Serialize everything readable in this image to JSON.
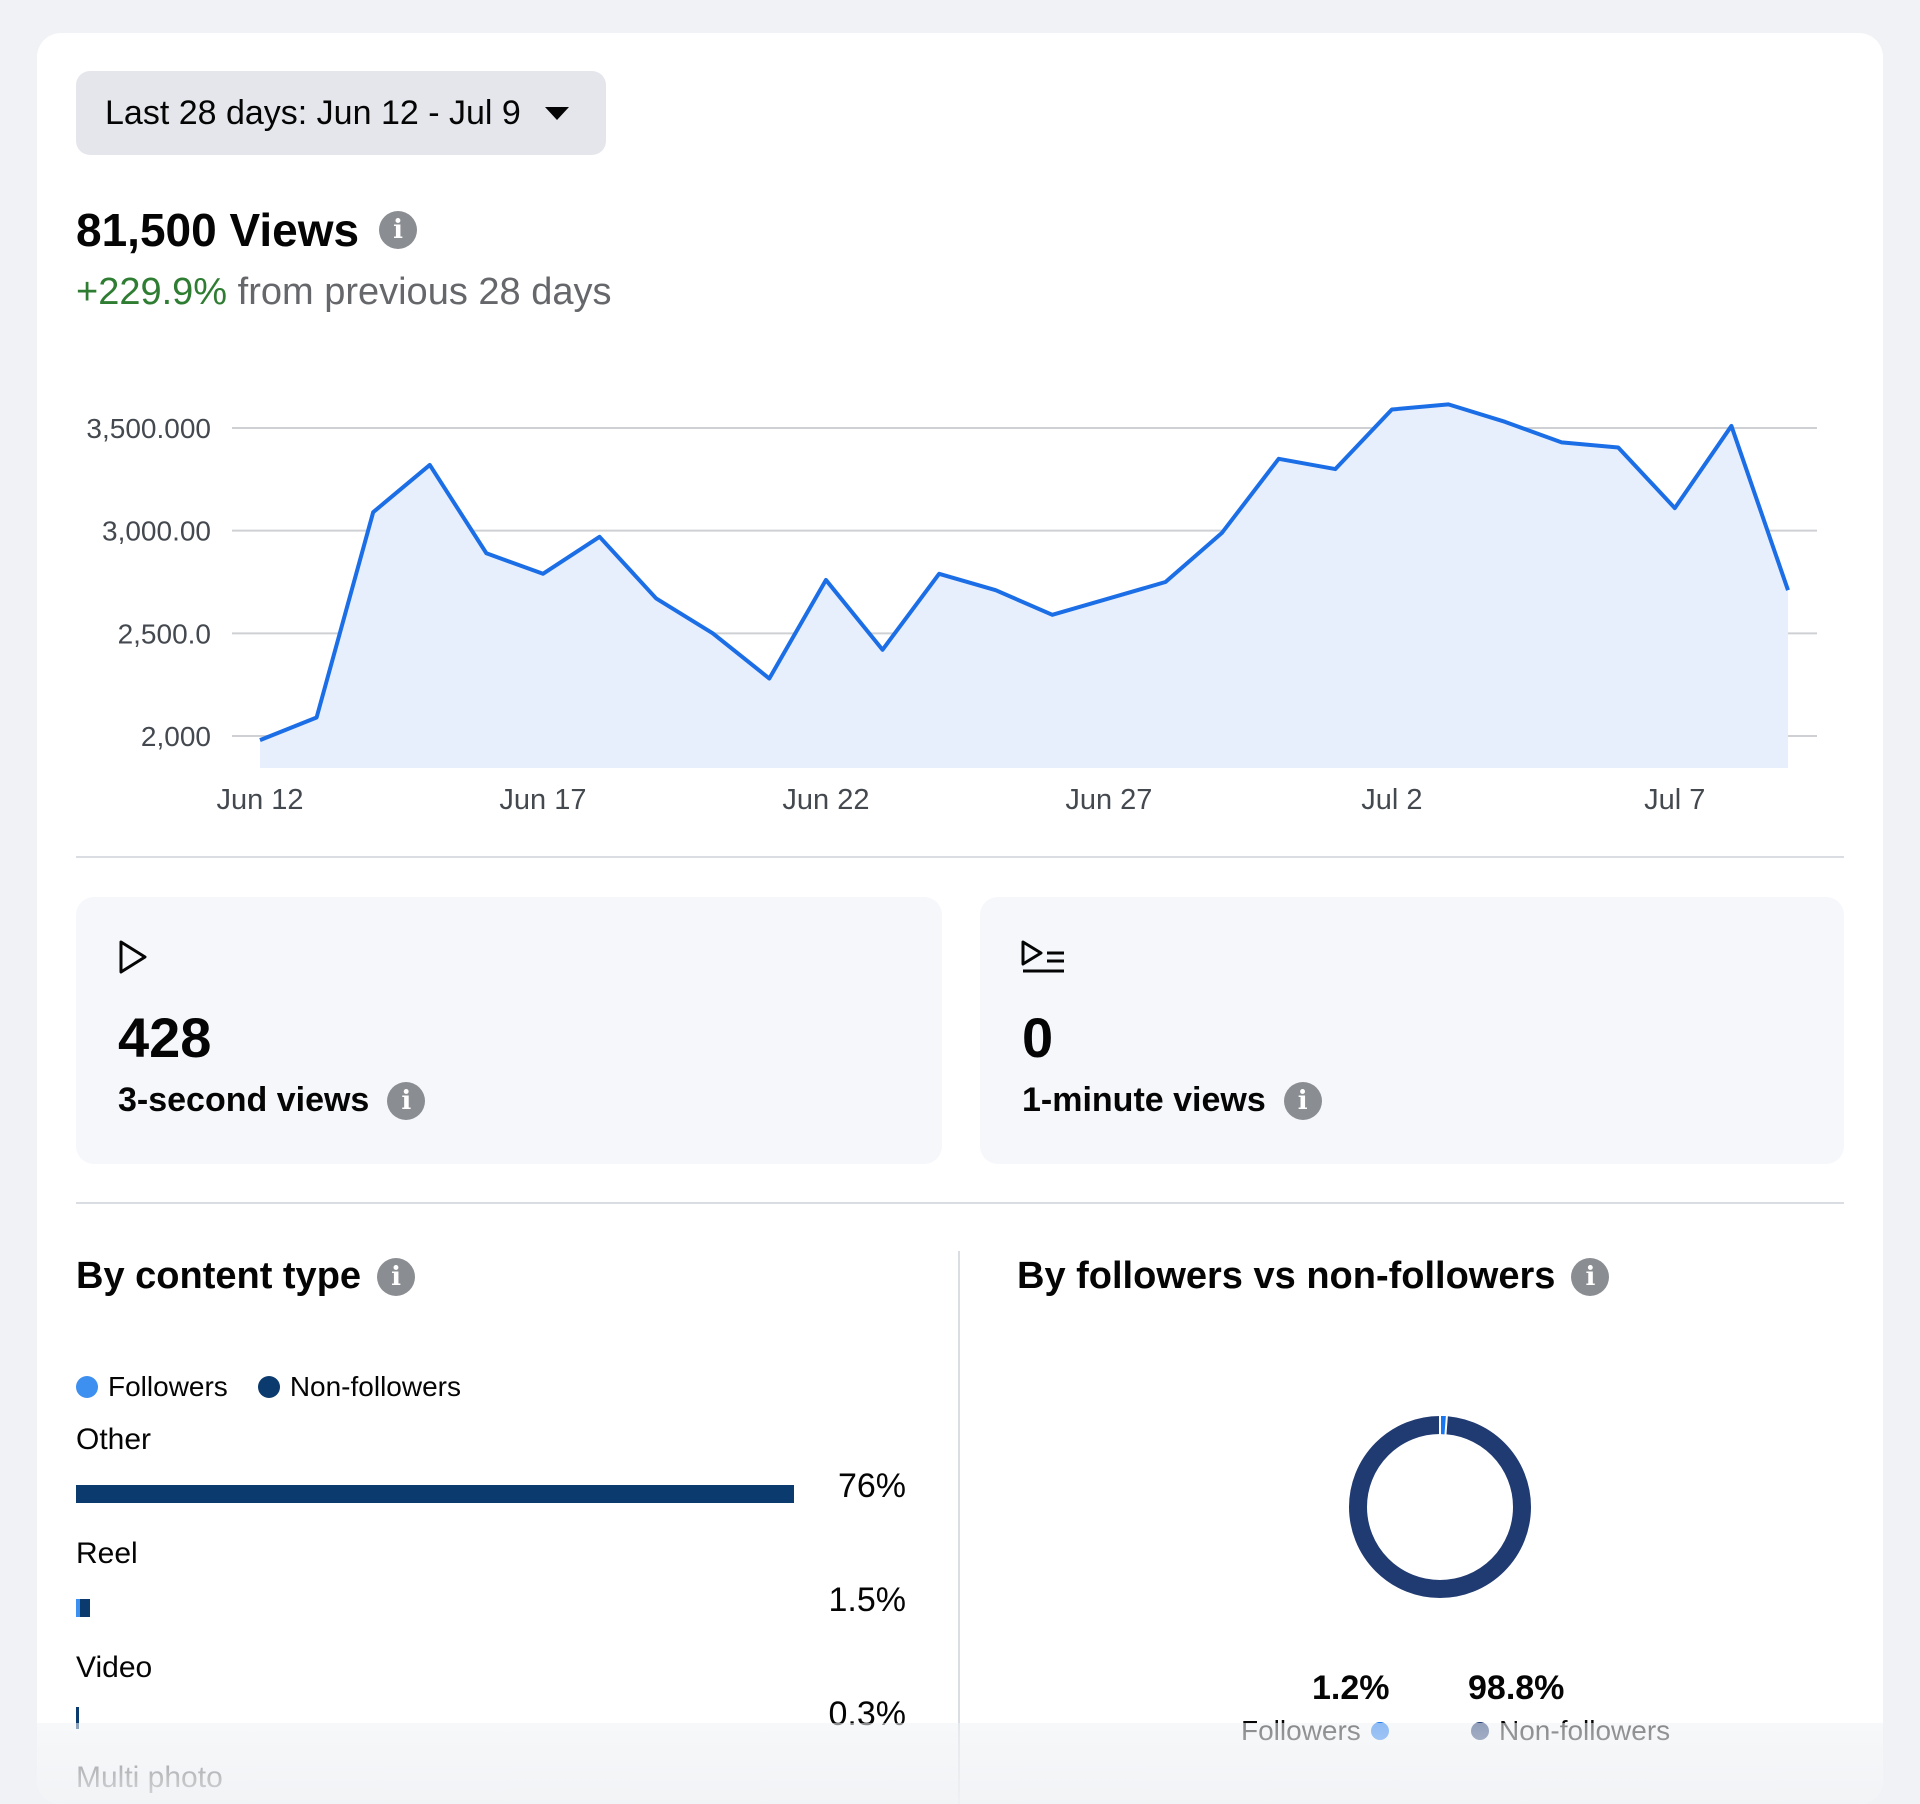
{
  "date_range": {
    "label": "Last 28 days: Jun 12 - Jul 9"
  },
  "views": {
    "title": "81,500 Views",
    "delta_pos": "+229.9%",
    "delta_rest": " from previous 28 days"
  },
  "chart_data": {
    "type": "area",
    "x": [
      "Jun 12",
      "Jun 13",
      "Jun 14",
      "Jun 15",
      "Jun 16",
      "Jun 17",
      "Jun 18",
      "Jun 19",
      "Jun 20",
      "Jun 21",
      "Jun 22",
      "Jun 23",
      "Jun 24",
      "Jun 25",
      "Jun 26",
      "Jun 27",
      "Jun 28",
      "Jun 29",
      "Jun 30",
      "Jul 1",
      "Jul 2",
      "Jul 3",
      "Jul 4",
      "Jul 5",
      "Jul 6",
      "Jul 7",
      "Jul 8",
      "Jul 9"
    ],
    "values": [
      1980,
      2090,
      3090,
      3320,
      2890,
      2790,
      2970,
      2670,
      2500,
      2280,
      2760,
      2420,
      2790,
      2710,
      2590,
      2670,
      2750,
      2990,
      3350,
      3300,
      3590,
      3615,
      3530,
      3430,
      3405,
      3110,
      3510,
      2710
    ],
    "ylim": [
      2000,
      3500
    ],
    "y_ticks": [
      2000,
      2500,
      3000,
      3500
    ],
    "y_tick_labels": [
      "2,000",
      "2,500.0",
      "3,000.00",
      "3,500.000"
    ],
    "x_tick_labels": [
      "Jun 12",
      "Jun 17",
      "Jun 22",
      "Jun 27",
      "Jul 2",
      "Jul 7"
    ],
    "grid": true,
    "line_color": "#1b6ee6",
    "fill_color": "#e8effc"
  },
  "metrics": [
    {
      "icon": "play-icon",
      "value": "428",
      "label": "3-second views"
    },
    {
      "icon": "play-list-icon",
      "value": "0",
      "label": "1-minute views"
    }
  ],
  "content_type": {
    "title": "By content type",
    "legend": [
      {
        "label": "Followers",
        "color": "#3d8ff0"
      },
      {
        "label": "Non-followers",
        "color": "#0a3a6e"
      }
    ],
    "rows": [
      {
        "label": "Other",
        "pct": "76%",
        "value": 76,
        "followers_share": 0.0
      },
      {
        "label": "Reel",
        "pct": "1.5%",
        "value": 1.5,
        "followers_share": 0.25
      },
      {
        "label": "Video",
        "pct": "0.3%",
        "value": 0.3,
        "followers_share": 0.0
      },
      {
        "label": "Multi photo"
      }
    ]
  },
  "followers_split": {
    "title": "By followers vs non-followers",
    "followers_pct": "1.2%",
    "followers_label": "Followers",
    "followers_value": 1.2,
    "followers_color": "#1877f2",
    "nonfollowers_pct": "98.8%",
    "nonfollowers_label": "Non-followers",
    "nonfollowers_value": 98.8,
    "nonfollowers_color": "#203a72"
  }
}
